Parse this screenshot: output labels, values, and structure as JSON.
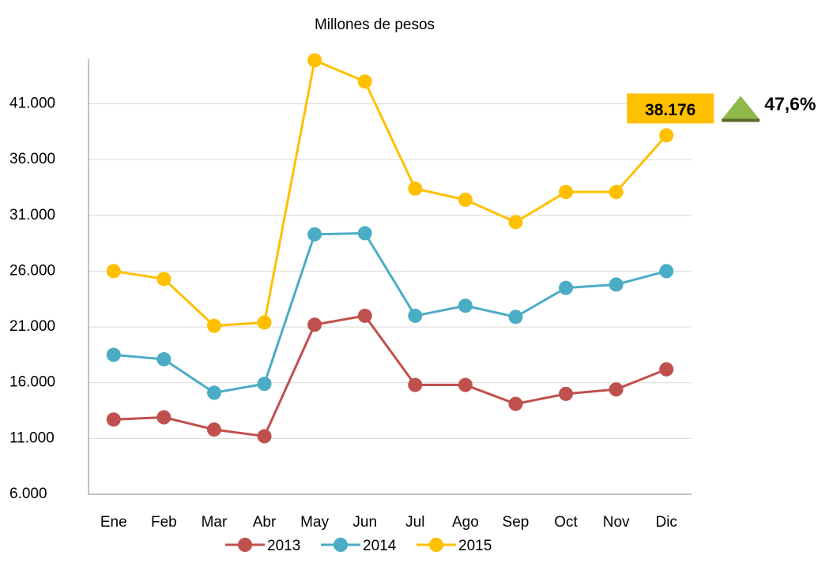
{
  "chart_data": {
    "type": "line",
    "title": "Millones de pesos",
    "categories": [
      "Ene",
      "Feb",
      "Mar",
      "Abr",
      "May",
      "Jun",
      "Jul",
      "Ago",
      "Sep",
      "Oct",
      "Nov",
      "Dic"
    ],
    "series": [
      {
        "name": "2013",
        "color": "#c0504d",
        "values": [
          12700,
          12900,
          11800,
          11200,
          21200,
          22000,
          15800,
          15800,
          14100,
          15000,
          15400,
          17200
        ]
      },
      {
        "name": "2014",
        "color": "#4bacc6",
        "values": [
          18500,
          18100,
          15100,
          15900,
          29300,
          29400,
          22000,
          22900,
          21900,
          24500,
          24800,
          26000
        ]
      },
      {
        "name": "2015",
        "color": "#ffc000",
        "values": [
          26000,
          25300,
          21100,
          21400,
          44900,
          43000,
          33400,
          32400,
          30400,
          33100,
          33100,
          38176
        ],
        "value_labels": [
          null,
          null,
          null,
          null,
          null,
          null,
          null,
          null,
          null,
          null,
          null,
          "38.176"
        ]
      }
    ],
    "ylim": [
      6000,
      45000
    ],
    "yticks": [
      {
        "value": 6000,
        "label": "6.000"
      },
      {
        "value": 11000,
        "label": "11.000"
      },
      {
        "value": 16000,
        "label": "16.000"
      },
      {
        "value": 21000,
        "label": "21.000"
      },
      {
        "value": 26000,
        "label": "26.000"
      },
      {
        "value": 31000,
        "label": "31.000"
      },
      {
        "value": 36000,
        "label": "36.000"
      },
      {
        "value": 41000,
        "label": "41.000"
      }
    ],
    "grid": true,
    "legend": "bottom",
    "annotation": "47,6%"
  }
}
